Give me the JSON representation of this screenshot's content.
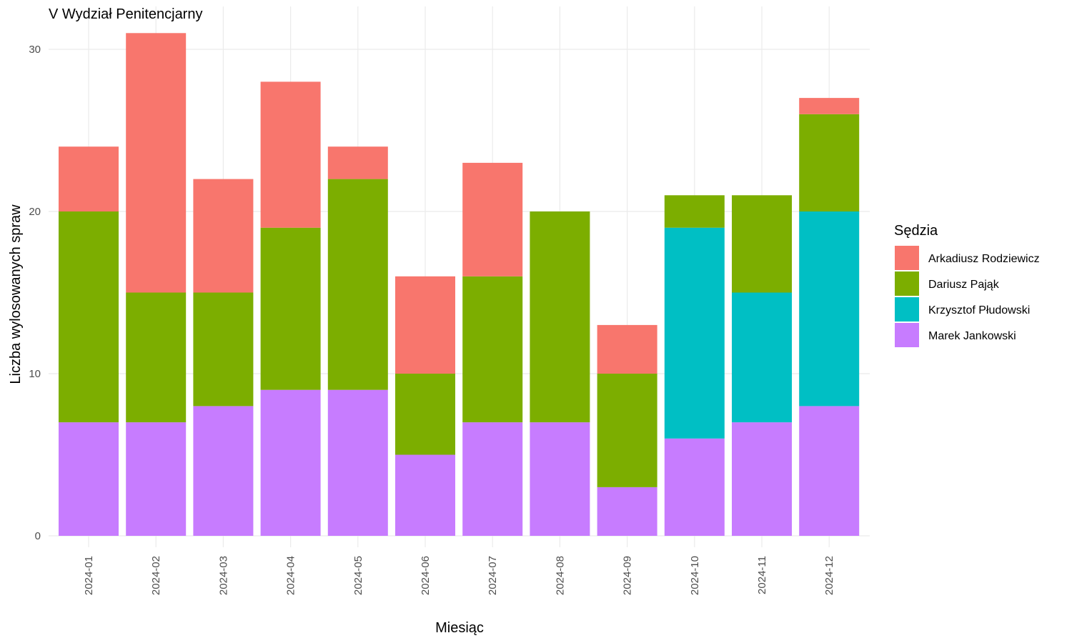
{
  "chart_data": {
    "type": "bar",
    "stacked": true,
    "title": "V Wydział Penitencjarny",
    "xlabel": "Miesiąc",
    "ylabel": "Liczba wylosowanych spraw",
    "ylim": [
      0,
      32
    ],
    "yticks": [
      0,
      10,
      20,
      30
    ],
    "grid": true,
    "legend_title": "Sędzia",
    "legend_position": "right",
    "categories": [
      "2024-01",
      "2024-02",
      "2024-03",
      "2024-04",
      "2024-05",
      "2024-06",
      "2024-07",
      "2024-08",
      "2024-09",
      "2024-10",
      "2024-11",
      "2024-12"
    ],
    "series": [
      {
        "name": "Marek Jankowski",
        "color": "#C77CFF",
        "values": [
          7,
          7,
          8,
          9,
          9,
          5,
          7,
          7,
          3,
          6,
          7,
          8
        ]
      },
      {
        "name": "Krzysztof Płudowski",
        "color": "#00BFC4",
        "values": [
          0,
          0,
          0,
          0,
          0,
          0,
          0,
          0,
          0,
          13,
          8,
          12
        ]
      },
      {
        "name": "Dariusz Pająk",
        "color": "#7CAE00",
        "values": [
          13,
          8,
          7,
          10,
          13,
          5,
          9,
          13,
          7,
          2,
          6,
          6
        ]
      },
      {
        "name": "Arkadiusz Rodziewicz",
        "color": "#F8766D",
        "values": [
          4,
          16,
          7,
          9,
          2,
          6,
          7,
          0,
          3,
          0,
          0,
          1
        ]
      }
    ],
    "legend_order": [
      "Arkadiusz Rodziewicz",
      "Dariusz Pająk",
      "Krzysztof Płudowski",
      "Marek Jankowski"
    ]
  }
}
